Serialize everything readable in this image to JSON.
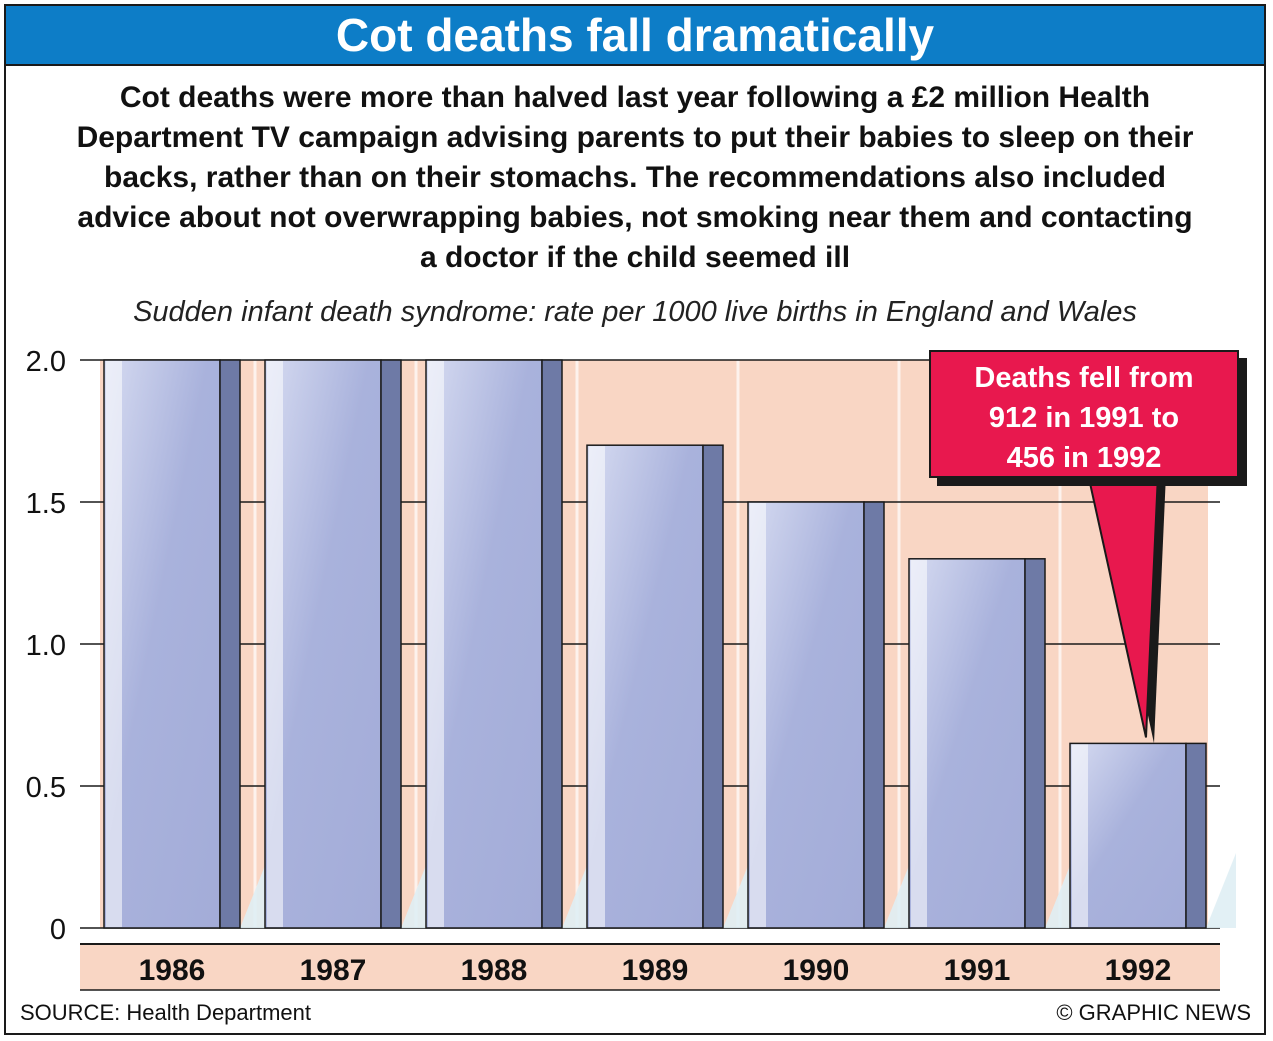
{
  "title": "Cot deaths fall dramatically",
  "intro": [
    "Cot deaths were more than halved last year following a £2 million Health",
    "Department TV campaign advising parents to put their babies to sleep on their",
    "backs, rather than on their stomachs. The recommendations also included",
    "advice about not overwrapping babies, not smoking near them and contacting",
    "a doctor if the child seemed ill"
  ],
  "callout": {
    "lines": [
      "Deaths fell from",
      "912 in 1991 to",
      "456 in 1992"
    ]
  },
  "source": "SOURCE: Health Department",
  "credit": "© GRAPHIC NEWS",
  "colors": {
    "title_bg": "#0d7dc7",
    "bar_front": "#a9b2dc",
    "bar_highlight": "#d6dbf1",
    "bar_side": "#6e7aa6",
    "chart_bg": "#f9d6c4",
    "callout_bg": "#e8184e",
    "axis_band": "#f9d6c4"
  },
  "chart_data": {
    "type": "bar",
    "title": "Sudden infant death syndrome: rate per 1000 live births in England and Wales",
    "categories": [
      "1986",
      "1987",
      "1988",
      "1989",
      "1990",
      "1991",
      "1992"
    ],
    "values": [
      2.0,
      2.0,
      2.0,
      1.7,
      1.5,
      1.3,
      0.65
    ],
    "ylim": [
      0,
      2.0
    ],
    "yticks": [
      0,
      0.5,
      1.0,
      1.5,
      2.0
    ],
    "ytick_labels": [
      "0",
      "0.5",
      "1.0",
      "1.5",
      "2.0"
    ],
    "xlabel": "",
    "ylabel": "",
    "grid": true
  }
}
